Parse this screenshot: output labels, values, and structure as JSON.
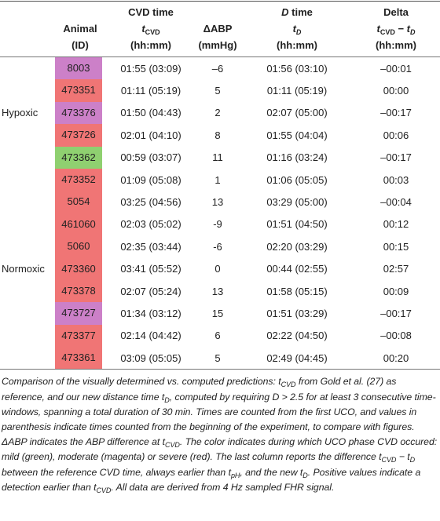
{
  "table": {
    "headers": [
      [
        [
          {
            "text": "Animal"
          }
        ],
        [
          {
            "text": "(ID)"
          }
        ]
      ],
      [
        [
          {
            "text": "CVD time"
          }
        ],
        [
          {
            "text": "t",
            "italic": true
          },
          {
            "text": "CVD",
            "sub": true
          }
        ],
        [
          {
            "text": "(hh:mm)"
          }
        ]
      ],
      [
        [
          {
            "text": "ΔABP"
          }
        ],
        [
          {
            "text": "(mmHg)"
          }
        ]
      ],
      [
        [
          {
            "text": "D",
            "italic": true
          },
          {
            "text": " time"
          }
        ],
        [
          {
            "text": "t",
            "italic": true
          },
          {
            "text": "D",
            "sub": true,
            "italic": true
          }
        ],
        [
          {
            "text": "(hh:mm)"
          }
        ]
      ],
      [
        [
          {
            "text": "Delta"
          }
        ],
        [
          {
            "text": "t",
            "italic": true
          },
          {
            "text": "CVD",
            "sub": true
          },
          {
            "text": " − "
          },
          {
            "text": "t",
            "italic": true
          },
          {
            "text": "D",
            "sub": true,
            "italic": true
          }
        ],
        [
          {
            "text": "(hh:mm)"
          }
        ]
      ]
    ],
    "rows": [
      {
        "animal": "8003",
        "color": "#cc80c8",
        "cvd": "01:55 (03:09)",
        "dabp": "–6",
        "dtime": "01:56 (03:10)",
        "delta": "–00:01"
      },
      {
        "animal": "473351",
        "color": "#f07575",
        "cvd": "01:11 (05:19)",
        "dabp": "5",
        "dtime": "01:11 (05:19)",
        "delta": "00:00"
      },
      {
        "group": "Hypoxic",
        "animal": "473376",
        "color": "#cc80c8",
        "cvd": "01:50 (04:43)",
        "dabp": "2",
        "dtime": "02:07 (05:00)",
        "delta": "–00:17"
      },
      {
        "animal": "473726",
        "color": "#f07575",
        "cvd": "02:01 (04:10)",
        "dabp": "8",
        "dtime": "01:55 (04:04)",
        "delta": "00:06"
      },
      {
        "animal": "473362",
        "color": "#8fd070",
        "cvd": "00:59 (03:07)",
        "dabp": "11",
        "dtime": "01:16 (03:24)",
        "delta": "–00:17"
      },
      {
        "animal": "473352",
        "color": "#f07575",
        "cvd": "01:09 (05:08)",
        "dabp": "1",
        "dtime": "01:06 (05:05)",
        "delta": "00:03"
      },
      {
        "animal": "5054",
        "color": "#f07575",
        "cvd": "03:25 (04:56)",
        "dabp": "13",
        "dtime": "03:29 (05:00)",
        "delta": "–00:04"
      },
      {
        "animal": "461060",
        "color": "#f07575",
        "cvd": "02:03 (05:02)",
        "dabp": "-9",
        "dtime": "01:51 (04:50)",
        "delta": "00:12"
      },
      {
        "animal": "5060",
        "color": "#f07575",
        "cvd": "02:35 (03:44)",
        "dabp": "-6",
        "dtime": "02:20 (03:29)",
        "delta": "00:15"
      },
      {
        "group": "Normoxic",
        "animal": "473360",
        "color": "#f07575",
        "cvd": "03:41 (05:52)",
        "dabp": "0",
        "dtime": "00:44 (02:55)",
        "delta": "02:57"
      },
      {
        "animal": "473378",
        "color": "#f07575",
        "cvd": "02:07 (05:24)",
        "dabp": "13",
        "dtime": "01:58 (05:15)",
        "delta": "00:09"
      },
      {
        "animal": "473727",
        "color": "#cc80c8",
        "cvd": "01:34 (03:12)",
        "dabp": "15",
        "dtime": "01:51 (03:29)",
        "delta": "–00:17"
      },
      {
        "animal": "473377",
        "color": "#f07575",
        "cvd": "02:14 (04:42)",
        "dabp": "6",
        "dtime": "02:22 (04:50)",
        "delta": "–00:08"
      },
      {
        "animal": "473361",
        "color": "#f07575",
        "cvd": "03:09 (05:05)",
        "dabp": "5",
        "dtime": "02:49 (04:45)",
        "delta": "00:20"
      }
    ]
  },
  "caption": [
    {
      "text": "Comparison of the visually determined vs. computed predictions: t"
    },
    {
      "text": "CVD",
      "sub": true
    },
    {
      "text": " from Gold et al. (27) as reference, and our new distance time t"
    },
    {
      "text": "D",
      "sub": true
    },
    {
      "text": ", computed by requiring D > 2.5 for at least 3 consecutive time-windows, spanning a total duration of 30 min. Times are counted from the first UCO, and values in parenthesis indicate times counted from the beginning of the experiment, to compare with figures. ΔABP indicates the ABP difference at t"
    },
    {
      "text": "CVD",
      "sub": true
    },
    {
      "text": ". The color indicates during which UCO phase CVD occured: mild (green), moderate (magenta) or severe (red). The last column reports the difference t"
    },
    {
      "text": "CVD",
      "sub": true
    },
    {
      "text": " − t"
    },
    {
      "text": "D",
      "sub": true
    },
    {
      "text": " between the reference CVD time, always earlier than t"
    },
    {
      "text": "pH",
      "sub": true
    },
    {
      "text": ", and the new t"
    },
    {
      "text": "D",
      "sub": true
    },
    {
      "text": ". Positive values indicate a detection earlier than t"
    },
    {
      "text": "CVD",
      "sub": true
    },
    {
      "text": ". All data are derived from 4 Hz sampled FHR signal."
    }
  ]
}
